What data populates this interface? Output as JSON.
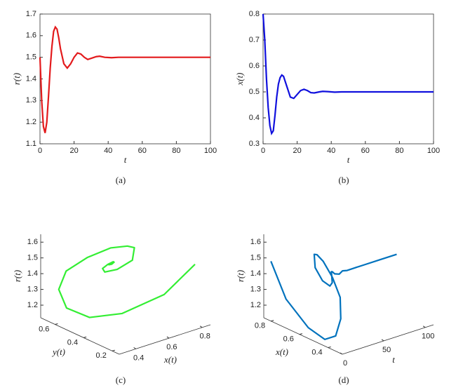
{
  "chart_data": [
    {
      "type": "line",
      "caption": "(a)",
      "xlabel": "t",
      "ylabel": "r(t)",
      "x": [
        0,
        1,
        2,
        3,
        4,
        5,
        6,
        7,
        8,
        9,
        10,
        11,
        12,
        14,
        16,
        18,
        20,
        22,
        24,
        26,
        28,
        30,
        33,
        35,
        38,
        42,
        46,
        50,
        60,
        70,
        80,
        90,
        100
      ],
      "series": [
        {
          "color": "#e31a1c",
          "values": [
            1.5,
            1.3,
            1.18,
            1.15,
            1.2,
            1.32,
            1.45,
            1.55,
            1.62,
            1.64,
            1.63,
            1.59,
            1.54,
            1.47,
            1.45,
            1.47,
            1.5,
            1.52,
            1.515,
            1.5,
            1.49,
            1.495,
            1.503,
            1.505,
            1.5,
            1.498,
            1.5,
            1.5,
            1.5,
            1.5,
            1.5,
            1.5,
            1.5
          ]
        }
      ],
      "xlim": [
        0,
        100
      ],
      "xticks": [
        0,
        20,
        40,
        60,
        80,
        100
      ],
      "ylim": [
        1.1,
        1.7
      ],
      "yticks": [
        1.1,
        1.2,
        1.3,
        1.4,
        1.5,
        1.6,
        1.7
      ],
      "grid": false
    },
    {
      "type": "line",
      "caption": "(b)",
      "xlabel": "t",
      "ylabel": "x(t)",
      "x": [
        0,
        1,
        2,
        3,
        4,
        5,
        6,
        7,
        8,
        9,
        10,
        11,
        12,
        14,
        16,
        18,
        20,
        22,
        24,
        26,
        28,
        30,
        33,
        35,
        38,
        42,
        46,
        50,
        60,
        70,
        80,
        90,
        100
      ],
      "series": [
        {
          "color": "#1010dd",
          "values": [
            0.8,
            0.7,
            0.55,
            0.44,
            0.37,
            0.34,
            0.35,
            0.41,
            0.48,
            0.53,
            0.555,
            0.565,
            0.56,
            0.52,
            0.48,
            0.475,
            0.49,
            0.505,
            0.51,
            0.505,
            0.497,
            0.496,
            0.5,
            0.502,
            0.501,
            0.499,
            0.5,
            0.5,
            0.5,
            0.5,
            0.5,
            0.5,
            0.5
          ]
        }
      ],
      "xlim": [
        0,
        100
      ],
      "xticks": [
        0,
        20,
        40,
        60,
        80,
        100
      ],
      "ylim": [
        0.3,
        0.8
      ],
      "yticks": [
        0.3,
        0.4,
        0.5,
        0.6,
        0.7,
        0.8
      ],
      "grid": false
    },
    {
      "type": "line3d",
      "caption": "(c)",
      "xlabel": "x(t)",
      "ylabel": "y(t)",
      "zlabel": "r(t)",
      "color": "#33ee33",
      "x": [
        0.8,
        0.7,
        0.55,
        0.44,
        0.37,
        0.34,
        0.35,
        0.41,
        0.48,
        0.53,
        0.555,
        0.56,
        0.52,
        0.48,
        0.475,
        0.49,
        0.505,
        0.51,
        0.505,
        0.496,
        0.502,
        0.499,
        0.5
      ],
      "y": [
        0.2,
        0.3,
        0.42,
        0.52,
        0.6,
        0.62,
        0.58,
        0.5,
        0.42,
        0.36,
        0.34,
        0.36,
        0.42,
        0.46,
        0.47,
        0.45,
        0.43,
        0.43,
        0.44,
        0.45,
        0.445,
        0.44,
        0.44
      ],
      "z": [
        1.5,
        1.3,
        1.18,
        1.15,
        1.2,
        1.32,
        1.45,
        1.55,
        1.62,
        1.64,
        1.63,
        1.54,
        1.47,
        1.45,
        1.47,
        1.5,
        1.52,
        1.515,
        1.5,
        1.495,
        1.505,
        1.5,
        1.5
      ],
      "xlim": [
        0.3,
        0.85
      ],
      "xticks": [
        0.4,
        0.6,
        0.8
      ],
      "ylim": [
        0.15,
        0.7
      ],
      "yticks": [
        0.2,
        0.4,
        0.6
      ],
      "zlim": [
        1.12,
        1.65
      ],
      "zticks": [
        1.2,
        1.3,
        1.4,
        1.5,
        1.6
      ]
    },
    {
      "type": "line3d",
      "caption": "(d)",
      "xlabel": "t",
      "ylabel": "x(t)",
      "zlabel": "r(t)",
      "color": "#0072bd",
      "x": [
        0,
        1,
        2,
        3,
        4,
        5,
        6,
        7,
        8,
        9,
        10,
        12,
        14,
        16,
        18,
        20,
        22,
        24,
        26,
        30,
        35,
        40,
        50,
        60,
        80,
        100
      ],
      "y": [
        0.8,
        0.7,
        0.55,
        0.44,
        0.37,
        0.34,
        0.35,
        0.41,
        0.48,
        0.53,
        0.555,
        0.56,
        0.52,
        0.48,
        0.475,
        0.49,
        0.505,
        0.51,
        0.505,
        0.496,
        0.502,
        0.499,
        0.5,
        0.5,
        0.5,
        0.5
      ],
      "z": [
        1.5,
        1.3,
        1.18,
        1.15,
        1.2,
        1.32,
        1.45,
        1.55,
        1.62,
        1.64,
        1.63,
        1.54,
        1.47,
        1.45,
        1.47,
        1.5,
        1.52,
        1.515,
        1.5,
        1.495,
        1.505,
        1.5,
        1.5,
        1.5,
        1.5,
        1.5
      ],
      "xlim": [
        0,
        110
      ],
      "xticks": [
        0,
        50,
        100
      ],
      "ylim": [
        0.3,
        0.85
      ],
      "yticks": [
        0.4,
        0.6,
        0.8
      ],
      "zlim": [
        1.12,
        1.65
      ],
      "zticks": [
        1.2,
        1.3,
        1.4,
        1.5,
        1.6
      ]
    }
  ]
}
